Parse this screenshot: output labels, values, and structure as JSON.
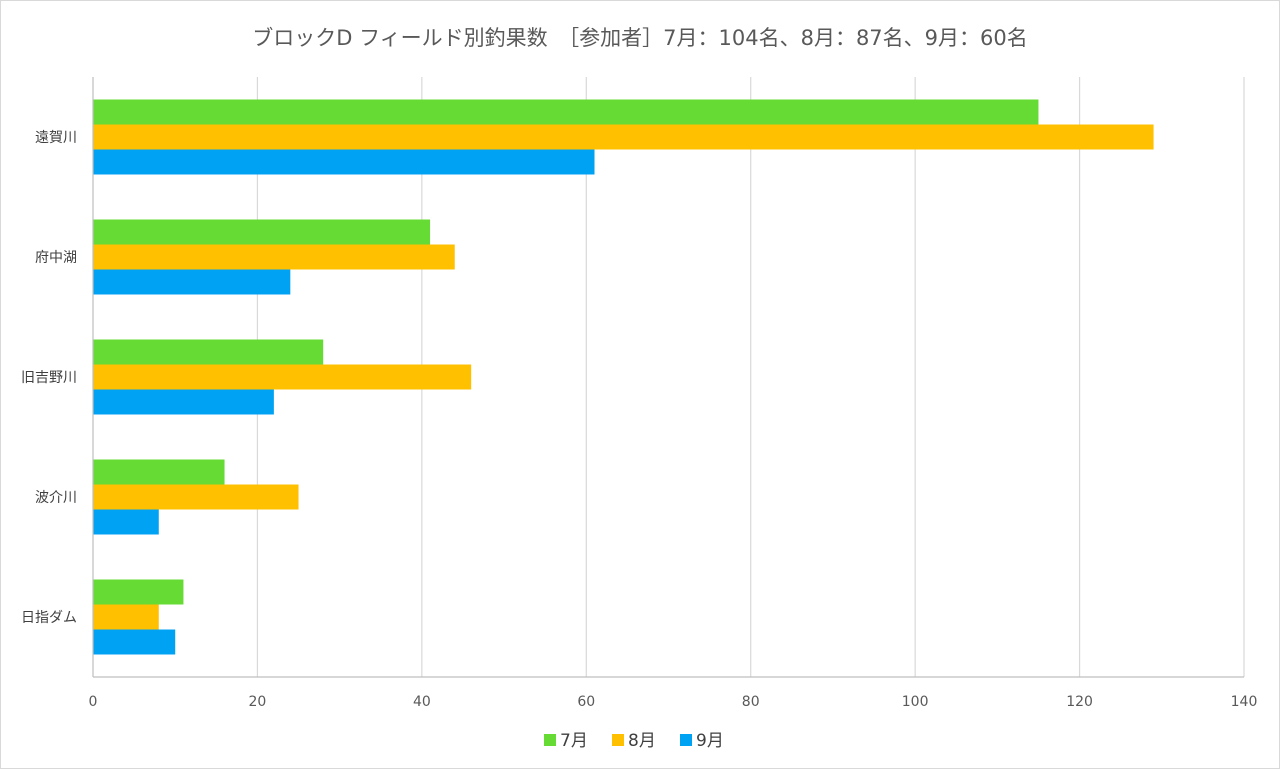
{
  "chart_data": {
    "type": "bar",
    "orientation": "horizontal",
    "title": "ブロックD フィールド別釣果数　［参加者］7月：104名、8月：87名、9月：60名",
    "categories": [
      "遠賀川",
      "府中湖",
      "旧吉野川",
      "波介川",
      "日指ダム"
    ],
    "series": [
      {
        "name": "7月",
        "color": "#66db33",
        "values": [
          115,
          41,
          28,
          16,
          11
        ]
      },
      {
        "name": "8月",
        "color": "#ffc000",
        "values": [
          129,
          44,
          46,
          25,
          8
        ]
      },
      {
        "name": "9月",
        "color": "#00a2f3",
        "values": [
          61,
          24,
          22,
          8,
          10
        ]
      }
    ],
    "xlim": [
      0,
      140
    ],
    "xticks": [
      "0",
      "20",
      "40",
      "60",
      "80",
      "100",
      "120",
      "140"
    ],
    "grid": true,
    "legend": "bottom",
    "gridline_color": "#d9d9d9",
    "axis_color": "#bfbfbf"
  }
}
